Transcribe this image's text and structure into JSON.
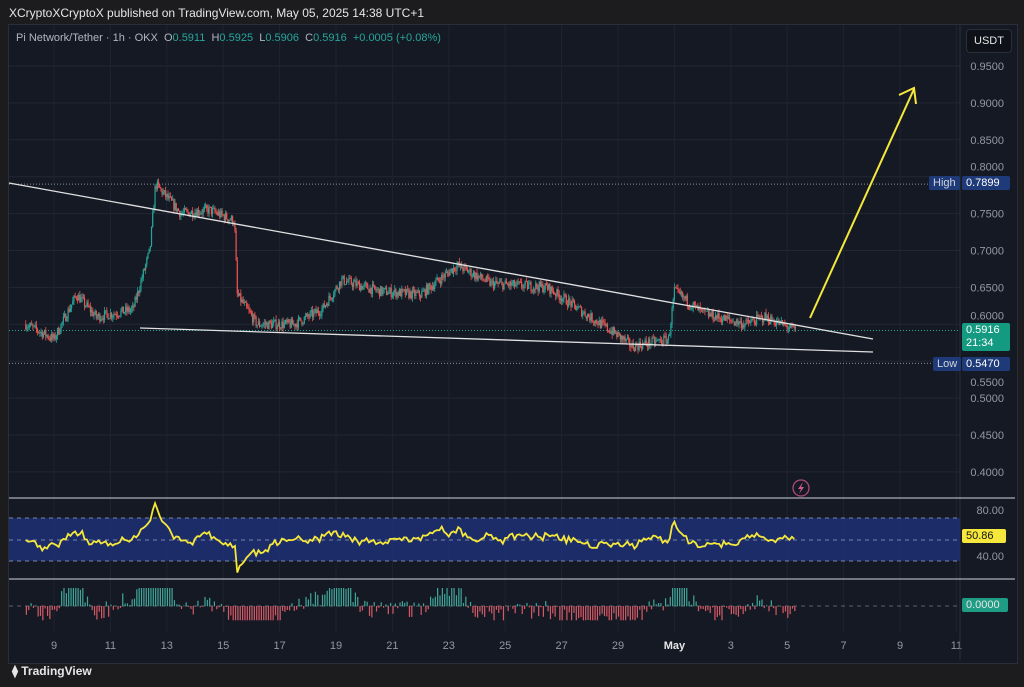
{
  "header": {
    "published": "XCryptoXCryptoX published on TradingView.com, May 05, 2025 14:38 UTC+1"
  },
  "legend": {
    "symbol": "Pi Network/Tether · 1h · OKX",
    "o_label": "O",
    "o": "0.5911",
    "h_label": "H",
    "h": "0.5925",
    "l_label": "L",
    "l": "0.5906",
    "c_label": "C",
    "c": "0.5916",
    "change": "+0.0005 (+0.08%)"
  },
  "currency_button": "USDT",
  "tags": {
    "high_label": "High",
    "high": "0.7899",
    "low_label": "Low",
    "low": "0.5470",
    "price": "0.5916",
    "countdown": "21:34",
    "rsi": "50.86",
    "macd": "0.0000"
  },
  "footer": {
    "brand": "TradingView"
  },
  "colors": {
    "up": "#26a69a",
    "down": "#ef5350",
    "rsi": "#f5e73b",
    "arrow": "#f5e73b",
    "trend": "#e0e0e0"
  },
  "chart_data": {
    "type": "candlestick",
    "title": "Pi Network/Tether 1h OKX",
    "y_ticks": [
      "0.9500",
      "0.9000",
      "0.8500",
      "0.8000",
      "0.7500",
      "0.7000",
      "0.6500",
      "0.6000",
      "0.5500",
      "0.5000",
      "0.4500",
      "0.4000"
    ],
    "ylim": [
      0.38,
      0.97
    ],
    "x_ticks": [
      "9",
      "11",
      "13",
      "15",
      "17",
      "19",
      "21",
      "23",
      "25",
      "27",
      "29",
      "May",
      "3",
      "5",
      "7",
      "9",
      "11"
    ],
    "approx_close_path": [
      [
        8,
        0.6
      ],
      [
        9,
        0.58
      ],
      [
        9.8,
        0.64
      ],
      [
        10.5,
        0.61
      ],
      [
        11.8,
        0.62
      ],
      [
        12.4,
        0.7
      ],
      [
        12.6,
        0.79
      ],
      [
        13.5,
        0.75
      ],
      [
        14.5,
        0.755
      ],
      [
        15.4,
        0.74
      ],
      [
        15.5,
        0.64
      ],
      [
        16.2,
        0.6
      ],
      [
        17.5,
        0.6
      ],
      [
        18.5,
        0.62
      ],
      [
        19.2,
        0.66
      ],
      [
        20.5,
        0.645
      ],
      [
        22,
        0.64
      ],
      [
        23.3,
        0.68
      ],
      [
        24.5,
        0.655
      ],
      [
        26.5,
        0.65
      ],
      [
        28,
        0.61
      ],
      [
        29,
        0.585
      ],
      [
        29.5,
        0.57
      ],
      [
        30.8,
        0.58
      ],
      [
        31,
        0.645
      ],
      [
        32,
        0.615
      ],
      [
        33.5,
        0.6
      ],
      [
        34.2,
        0.61
      ],
      [
        35.3,
        0.5916
      ]
    ],
    "rsi_ticks": [
      "80.00",
      "40.00"
    ],
    "macd_ticks": [
      "0.0000"
    ]
  }
}
